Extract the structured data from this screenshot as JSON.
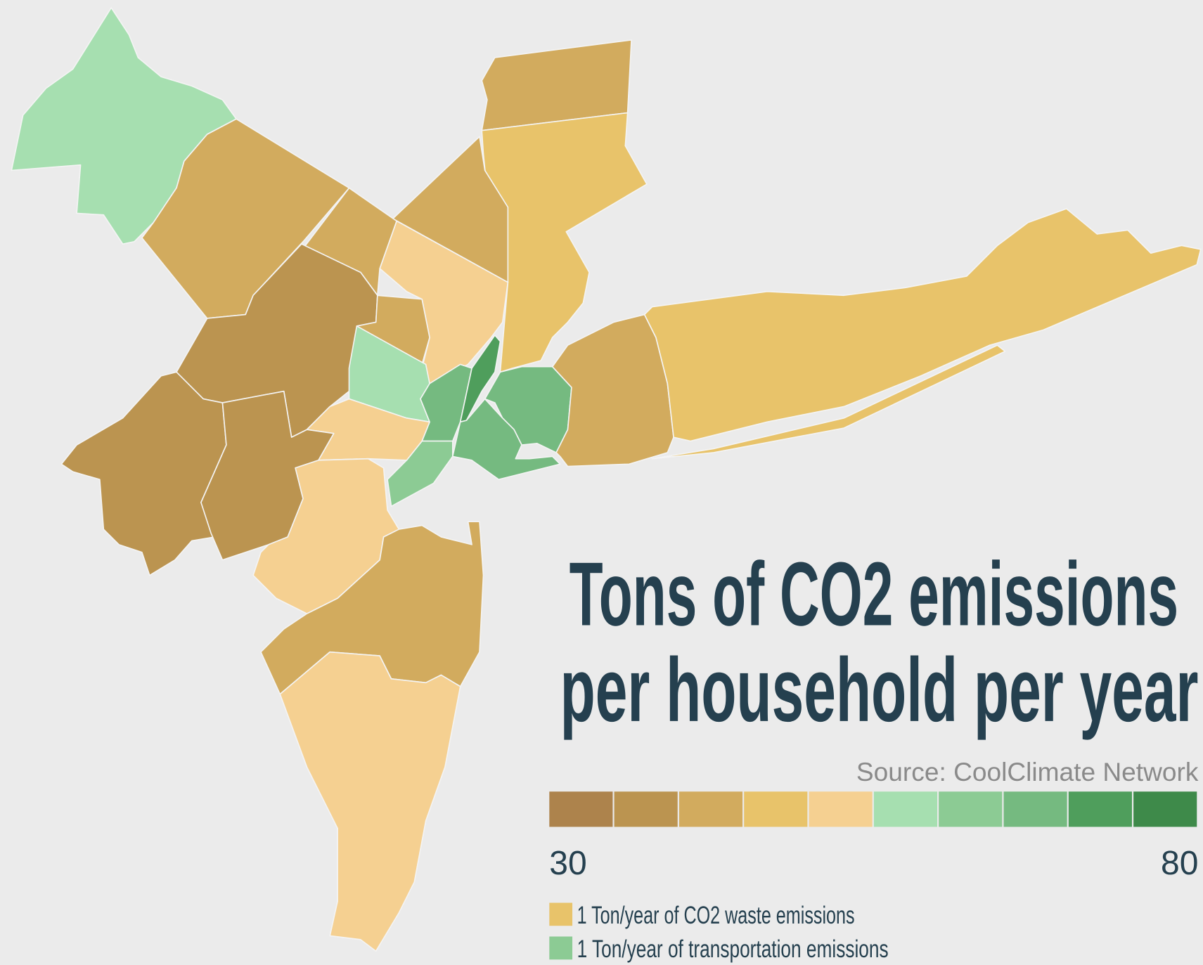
{
  "title_lines": [
    "Tons of CO2 emissions",
    "per household per year"
  ],
  "source": "Source: CoolClimate Network",
  "scale": {
    "min": 30,
    "max": 80,
    "colors": [
      "#ad834c",
      "#bb9450",
      "#d2ab5e",
      "#e8c36a",
      "#f5d091",
      "#a6dfb0",
      "#8ccb94",
      "#75ba80",
      "#4f9e5c",
      "#3e8a4a"
    ]
  },
  "legend": [
    {
      "color": "#e8c36a",
      "label": "1 Ton/year of CO2 waste emissions"
    },
    {
      "color": "#8ccb94",
      "label": "1 Ton/year of transportation emissions"
    }
  ]
}
